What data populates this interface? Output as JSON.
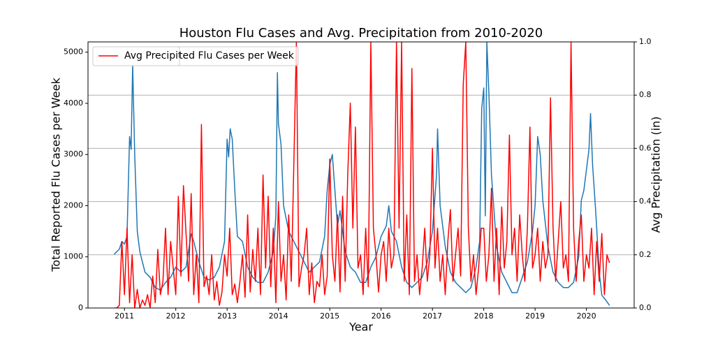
{
  "chart_data": {
    "type": "line",
    "title": "Houston Flu Cases and Avg. Precipitation from 2010-2020",
    "x_label": "Year",
    "y_label": "Total Reported Flu Cases per Week",
    "y2_label": "Avg Precipitation (in)",
    "legend": "upper left",
    "grid": "y2",
    "xlim": [
      2010.29,
      2020.93
    ],
    "xticks": [
      2011,
      2012,
      2013,
      2014,
      2015,
      2016,
      2017,
      2018,
      2019,
      2020
    ],
    "ylim": [
      0,
      5200
    ],
    "yticks": [
      0,
      1000,
      2000,
      3000,
      4000,
      5000
    ],
    "y2lim": [
      0,
      1
    ],
    "y2ticks": [
      {
        "value": 0,
        "label": "0.0"
      },
      0.2,
      0.4,
      0.6,
      0.8,
      {
        "value": 1,
        "label": "1.0"
      }
    ],
    "series": [
      {
        "name": "Total Reported Flu Cases per Week",
        "color": "#1f77b4",
        "axis": "y",
        "x": [
          2010.8,
          2010.9,
          2010.95,
          2011.0,
          2011.05,
          2011.1,
          2011.13,
          2011.16,
          2011.2,
          2011.25,
          2011.3,
          2011.4,
          2011.5,
          2011.6,
          2011.7,
          2011.8,
          2011.9,
          2012.0,
          2012.1,
          2012.2,
          2012.3,
          2012.35,
          2012.45,
          2012.55,
          2012.65,
          2012.75,
          2012.85,
          2012.95,
          2013.0,
          2013.03,
          2013.06,
          2013.1,
          2013.15,
          2013.2,
          2013.3,
          2013.4,
          2013.5,
          2013.6,
          2013.7,
          2013.8,
          2013.9,
          2013.95,
          2013.98,
          2014.0,
          2014.05,
          2014.1,
          2014.2,
          2014.3,
          2014.4,
          2014.5,
          2014.6,
          2014.7,
          2014.8,
          2014.9,
          2014.95,
          2015.0,
          2015.05,
          2015.1,
          2015.15,
          2015.2,
          2015.3,
          2015.4,
          2015.5,
          2015.6,
          2015.7,
          2015.8,
          2015.9,
          2016.0,
          2016.1,
          2016.15,
          2016.2,
          2016.3,
          2016.4,
          2016.5,
          2016.6,
          2016.7,
          2016.8,
          2016.9,
          2017.0,
          2017.08,
          2017.1,
          2017.15,
          2017.25,
          2017.35,
          2017.45,
          2017.55,
          2017.65,
          2017.75,
          2017.85,
          2017.92,
          2017.96,
          2018.0,
          2018.03,
          2018.06,
          2018.1,
          2018.15,
          2018.25,
          2018.35,
          2018.45,
          2018.55,
          2018.65,
          2018.75,
          2018.85,
          2018.95,
          2019.0,
          2019.05,
          2019.1,
          2019.15,
          2019.25,
          2019.35,
          2019.45,
          2019.55,
          2019.65,
          2019.75,
          2019.85,
          2019.9,
          2019.95,
          2020.0,
          2020.05,
          2020.08,
          2020.12,
          2020.18,
          2020.25,
          2020.3,
          2020.38,
          2020.45
        ],
        "values": [
          1050,
          1150,
          1300,
          1250,
          1400,
          3350,
          3100,
          4750,
          3000,
          1500,
          1100,
          700,
          600,
          400,
          350,
          500,
          600,
          800,
          700,
          800,
          1450,
          1300,
          900,
          600,
          550,
          600,
          800,
          1300,
          3300,
          2950,
          3500,
          3300,
          2300,
          1400,
          1300,
          800,
          600,
          500,
          500,
          700,
          1100,
          1800,
          4600,
          3600,
          3200,
          2000,
          1500,
          1300,
          1100,
          900,
          700,
          800,
          900,
          1400,
          2300,
          2800,
          3000,
          2300,
          1600,
          1900,
          1100,
          800,
          700,
          500,
          500,
          800,
          1000,
          1400,
          1600,
          2000,
          1500,
          1300,
          800,
          500,
          400,
          500,
          600,
          900,
          1500,
          2600,
          3500,
          2000,
          1200,
          700,
          500,
          400,
          300,
          400,
          800,
          1300,
          3900,
          4300,
          1800,
          5200,
          4200,
          2600,
          1200,
          700,
          500,
          300,
          300,
          600,
          900,
          1500,
          2000,
          3350,
          3000,
          2100,
          1200,
          700,
          500,
          400,
          400,
          500,
          1000,
          2100,
          2300,
          2700,
          3100,
          3800,
          2800,
          1900,
          700,
          250,
          150,
          50
        ]
      },
      {
        "name": "Avg Precipitation",
        "color": "#ff0000",
        "axis": "y2",
        "x": [
          2010.8,
          2010.85,
          2010.9,
          2010.95,
          2011.0,
          2011.05,
          2011.1,
          2011.15,
          2011.2,
          2011.25,
          2011.3,
          2011.35,
          2011.4,
          2011.45,
          2011.5,
          2011.55,
          2011.6,
          2011.65,
          2011.7,
          2011.75,
          2011.8,
          2011.85,
          2011.9,
          2011.95,
          2012.0,
          2012.05,
          2012.1,
          2012.15,
          2012.2,
          2012.25,
          2012.3,
          2012.35,
          2012.4,
          2012.45,
          2012.5,
          2012.55,
          2012.6,
          2012.65,
          2012.7,
          2012.75,
          2012.8,
          2012.85,
          2012.9,
          2012.95,
          2013.0,
          2013.05,
          2013.1,
          2013.15,
          2013.2,
          2013.25,
          2013.3,
          2013.35,
          2013.4,
          2013.45,
          2013.5,
          2013.55,
          2013.6,
          2013.65,
          2013.7,
          2013.75,
          2013.8,
          2013.85,
          2013.9,
          2013.95,
          2014.0,
          2014.05,
          2014.1,
          2014.15,
          2014.2,
          2014.25,
          2014.3,
          2014.35,
          2014.4,
          2014.45,
          2014.5,
          2014.55,
          2014.6,
          2014.65,
          2014.7,
          2014.75,
          2014.8,
          2014.85,
          2014.9,
          2014.95,
          2015.0,
          2015.05,
          2015.1,
          2015.15,
          2015.2,
          2015.25,
          2015.3,
          2015.35,
          2015.4,
          2015.45,
          2015.5,
          2015.55,
          2015.6,
          2015.65,
          2015.7,
          2015.75,
          2015.8,
          2015.85,
          2015.9,
          2015.95,
          2016.0,
          2016.05,
          2016.1,
          2016.15,
          2016.2,
          2016.25,
          2016.3,
          2016.35,
          2016.4,
          2016.45,
          2016.5,
          2016.55,
          2016.6,
          2016.65,
          2016.7,
          2016.75,
          2016.8,
          2016.85,
          2016.9,
          2016.95,
          2017.0,
          2017.05,
          2017.1,
          2017.15,
          2017.2,
          2017.25,
          2017.3,
          2017.35,
          2017.4,
          2017.45,
          2017.5,
          2017.55,
          2017.6,
          2017.65,
          2017.7,
          2017.75,
          2017.8,
          2017.85,
          2017.9,
          2017.95,
          2018.0,
          2018.05,
          2018.1,
          2018.15,
          2018.2,
          2018.25,
          2018.3,
          2018.35,
          2018.4,
          2018.45,
          2018.5,
          2018.55,
          2018.6,
          2018.65,
          2018.7,
          2018.75,
          2018.8,
          2018.85,
          2018.9,
          2018.95,
          2019.0,
          2019.05,
          2019.1,
          2019.15,
          2019.2,
          2019.25,
          2019.3,
          2019.35,
          2019.4,
          2019.45,
          2019.5,
          2019.55,
          2019.6,
          2019.65,
          2019.7,
          2019.75,
          2019.8,
          2019.85,
          2019.9,
          2019.95,
          2020.0,
          2020.05,
          2020.1,
          2020.15,
          2020.2,
          2020.25,
          2020.3,
          2020.35,
          2020.4,
          2020.45
        ],
        "values": [
          0,
          0,
          0.01,
          0.25,
          0.05,
          0.3,
          0.02,
          0.2,
          0,
          0.07,
          0,
          0.03,
          0.01,
          0.05,
          0,
          0.12,
          0.02,
          0.22,
          0.05,
          0.1,
          0.3,
          0.05,
          0.25,
          0.15,
          0.05,
          0.42,
          0.12,
          0.46,
          0.28,
          0.1,
          0.43,
          0.05,
          0.2,
          0.02,
          0.69,
          0.08,
          0.12,
          0.05,
          0.2,
          0.03,
          0.1,
          0.01,
          0.06,
          0.2,
          0.12,
          0.3,
          0.05,
          0.09,
          0.02,
          0.1,
          0.2,
          0.04,
          0.35,
          0.06,
          0.22,
          0.1,
          0.3,
          0.05,
          0.5,
          0.15,
          0.42,
          0.08,
          0.3,
          0.02,
          0.4,
          0.1,
          0.2,
          0.03,
          0.35,
          0.1,
          0.54,
          1.0,
          0.08,
          0.15,
          0.2,
          0.3,
          0.05,
          0.17,
          0.02,
          0.1,
          0.08,
          0.2,
          0.05,
          0.12,
          0.56,
          0.2,
          0.1,
          0.35,
          0.06,
          0.42,
          0.1,
          0.5,
          0.77,
          0.3,
          0.68,
          0.15,
          0.2,
          0.05,
          0.3,
          0.08,
          1.0,
          0.3,
          0.2,
          0.06,
          0.2,
          0.25,
          0.1,
          0.3,
          0.15,
          0.2,
          1.0,
          0.3,
          1.0,
          0.1,
          0.35,
          0.05,
          0.9,
          0.1,
          0.2,
          0.05,
          0.15,
          0.3,
          0.1,
          0.2,
          0.6,
          0.15,
          0.3,
          0.1,
          0.2,
          0.05,
          0.25,
          0.37,
          0.1,
          0.2,
          0.3,
          0.12,
          0.84,
          1.0,
          0.3,
          0.1,
          0.2,
          0.05,
          0.15,
          0.3,
          0.3,
          0.1,
          0.2,
          0.45,
          0.1,
          0.3,
          0.05,
          0.38,
          0.15,
          0.25,
          0.65,
          0.2,
          0.3,
          0.1,
          0.35,
          0.2,
          0.1,
          0.3,
          0.68,
          0.15,
          0.2,
          0.3,
          0.1,
          0.25,
          0.15,
          0.2,
          0.79,
          0.3,
          0.1,
          0.25,
          0.4,
          0.15,
          0.2,
          0.1,
          1.0,
          0.3,
          0.1,
          0.25,
          0.35,
          0.1,
          0.2,
          0.15,
          0.3,
          0.05,
          0.25,
          0.1,
          0.28,
          0.05,
          0.2,
          0.17
        ]
      }
    ]
  }
}
